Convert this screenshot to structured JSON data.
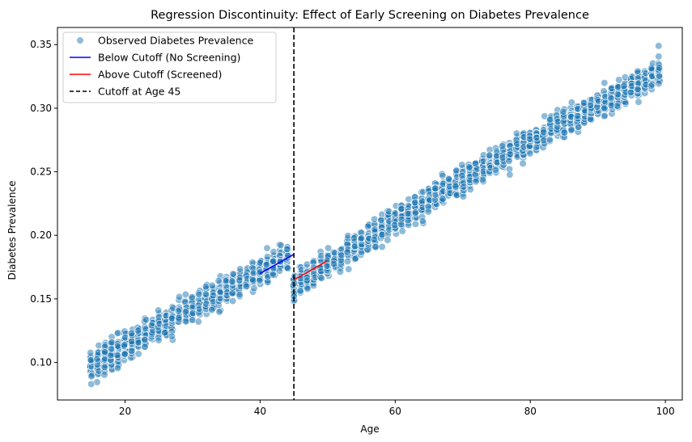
{
  "chart_data": {
    "type": "scatter",
    "title": "Regression Discontinuity: Effect of Early Screening on Diabetes Prevalence",
    "xlabel": "Age",
    "ylabel": "Diabetes Prevalence",
    "xlim": [
      10,
      102.5
    ],
    "ylim": [
      0.0705,
      0.3635
    ],
    "xticks": [
      20,
      40,
      60,
      80,
      100
    ],
    "yticks": [
      0.1,
      0.15,
      0.2,
      0.25,
      0.3,
      0.35
    ],
    "grid": false,
    "legend_position": "top-left",
    "scatter": {
      "name": "Observed Diabetes Prevalence",
      "color": "#1f77b4",
      "age_range": [
        15,
        99
      ],
      "trend_points": [
        [
          15,
          0.097
        ],
        [
          30,
          0.143
        ],
        [
          44,
          0.183
        ],
        [
          45,
          0.16
        ],
        [
          60,
          0.212
        ],
        [
          80,
          0.275
        ],
        [
          99,
          0.328
        ]
      ],
      "points_per_age": 24,
      "spread": 0.011,
      "extremes": [
        [
          99,
          0.349
        ],
        [
          15,
          0.083
        ],
        [
          45,
          0.152
        ]
      ]
    },
    "lines": [
      {
        "name": "Below Cutoff (No Screening)",
        "color": "#0000ff",
        "x": [
          40,
          45
        ],
        "y": [
          0.17,
          0.185
        ]
      },
      {
        "name": "Above Cutoff (Screened)",
        "color": "#ff0000",
        "x": [
          45,
          50
        ],
        "y": [
          0.165,
          0.18
        ]
      }
    ],
    "cutoff": {
      "name": "Cutoff at Age 45",
      "x": 45,
      "color": "#000000",
      "style": "dashed"
    }
  }
}
